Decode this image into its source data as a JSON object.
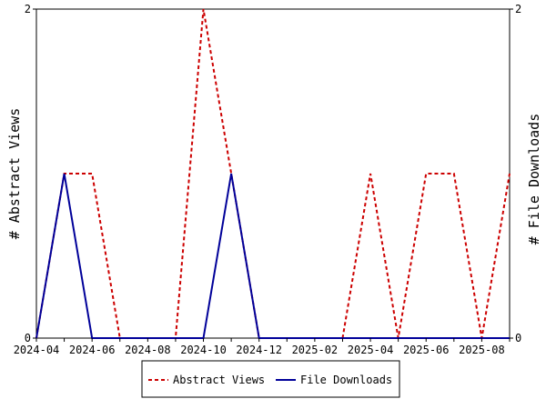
{
  "chart_data": {
    "type": "line",
    "title": "",
    "ylabel_left": "# Abstract Views",
    "ylabel_right": "# File Downloads",
    "xlabel": "",
    "x_ticks": [
      "2024-04",
      "2024-06",
      "2024-08",
      "2024-10",
      "2024-12",
      "2025-02",
      "2025-04",
      "2025-06",
      "2025-08"
    ],
    "x": [
      "2024-04",
      "2024-05",
      "2024-06",
      "2024-07",
      "2024-08",
      "2024-09",
      "2024-10",
      "2024-11",
      "2024-12",
      "2025-01",
      "2025-02",
      "2025-03",
      "2025-04",
      "2025-05",
      "2025-06",
      "2025-07",
      "2025-08",
      "2025-09"
    ],
    "ylim_left": [
      0,
      2
    ],
    "ylim_right": [
      0,
      2
    ],
    "y_ticks_left": [
      "0",
      "2"
    ],
    "y_ticks_right": [
      "0",
      "2"
    ],
    "legend_position": "bottom",
    "grid": false,
    "series": [
      {
        "name": "Abstract Views",
        "color": "#cc0000",
        "style": "dashed",
        "axis": "left",
        "values": [
          0,
          1,
          1,
          0,
          0,
          0,
          2,
          1,
          0,
          0,
          0,
          0,
          1,
          0,
          1,
          1,
          0,
          1
        ]
      },
      {
        "name": "File Downloads",
        "color": "#000099",
        "style": "solid",
        "axis": "right",
        "values": [
          0,
          1,
          0,
          0,
          0,
          0,
          0,
          1,
          0,
          0,
          0,
          0,
          0,
          0,
          0,
          0,
          0,
          0
        ]
      }
    ]
  }
}
